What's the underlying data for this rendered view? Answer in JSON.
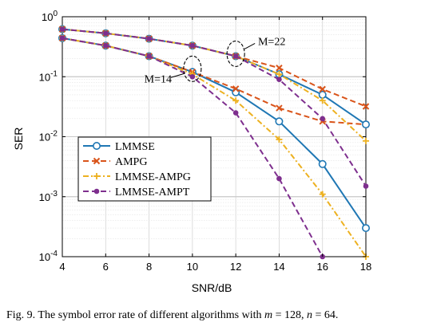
{
  "chart_data": {
    "type": "line",
    "title": "",
    "xlabel": "SNR/dB",
    "ylabel": "SER",
    "xlim": [
      4,
      18
    ],
    "ylim": [
      0.0001,
      1
    ],
    "yscale": "log",
    "grid": true,
    "legend_position": "bottom-left",
    "x_ticks": [
      4,
      6,
      8,
      10,
      12,
      14,
      16,
      18
    ],
    "y_ticks": [
      {
        "value": 0.0001,
        "mantissa": "10",
        "exp": "-4"
      },
      {
        "value": 0.001,
        "mantissa": "10",
        "exp": "-3"
      },
      {
        "value": 0.01,
        "mantissa": "10",
        "exp": "-2"
      },
      {
        "value": 0.1,
        "mantissa": "10",
        "exp": "-1"
      },
      {
        "value": 1,
        "mantissa": "10",
        "exp": "0"
      }
    ],
    "series": [
      {
        "name": "LMMSE",
        "group": "M=14",
        "color": "#1f77b4",
        "dash": "solid",
        "marker": "circle",
        "x": [
          4,
          6,
          8,
          10,
          12,
          14,
          16,
          18
        ],
        "y": [
          0.44,
          0.33,
          0.22,
          0.12,
          0.055,
          0.018,
          0.0035,
          0.0003
        ]
      },
      {
        "name": "AMPG",
        "group": "M=14",
        "color": "#d9541a",
        "dash": "dashed",
        "marker": "x",
        "x": [
          4,
          6,
          8,
          10,
          12,
          14,
          16,
          18
        ],
        "y": [
          0.44,
          0.33,
          0.22,
          0.12,
          0.063,
          0.03,
          0.018,
          0.016
        ]
      },
      {
        "name": "LMMSE-AMPG",
        "group": "M=14",
        "color": "#edb120",
        "dash": "dashdot",
        "marker": "plus",
        "x": [
          4,
          6,
          8,
          10,
          12,
          14,
          16,
          18
        ],
        "y": [
          0.44,
          0.33,
          0.22,
          0.11,
          0.04,
          0.009,
          0.0011,
          0.0001
        ]
      },
      {
        "name": "LMMSE-AMPT",
        "group": "M=14",
        "color": "#7e2f8e",
        "dash": "dashed",
        "marker": "dot",
        "x": [
          4,
          6,
          8,
          10,
          12,
          14,
          16
        ],
        "y": [
          0.44,
          0.33,
          0.22,
          0.1,
          0.025,
          0.002,
          0.0001
        ]
      },
      {
        "name": "LMMSE",
        "group": "M=22",
        "color": "#1f77b4",
        "dash": "solid",
        "marker": "circle",
        "x": [
          4,
          6,
          8,
          10,
          12,
          14,
          16,
          18
        ],
        "y": [
          0.62,
          0.53,
          0.43,
          0.33,
          0.22,
          0.11,
          0.05,
          0.016
        ]
      },
      {
        "name": "AMPG",
        "group": "M=22",
        "color": "#d9541a",
        "dash": "dashed",
        "marker": "x",
        "x": [
          4,
          6,
          8,
          10,
          12,
          14,
          16,
          18
        ],
        "y": [
          0.62,
          0.53,
          0.43,
          0.33,
          0.22,
          0.14,
          0.062,
          0.032
        ]
      },
      {
        "name": "LMMSE-AMPG",
        "group": "M=22",
        "color": "#edb120",
        "dash": "dashdot",
        "marker": "plus",
        "x": [
          4,
          6,
          8,
          10,
          12,
          14,
          16,
          18
        ],
        "y": [
          0.62,
          0.53,
          0.43,
          0.33,
          0.22,
          0.11,
          0.04,
          0.0085
        ]
      },
      {
        "name": "LMMSE-AMPT",
        "group": "M=22",
        "color": "#7e2f8e",
        "dash": "dashed",
        "marker": "dot",
        "x": [
          4,
          6,
          8,
          10,
          12,
          14,
          16,
          18
        ],
        "y": [
          0.62,
          0.53,
          0.43,
          0.33,
          0.22,
          0.09,
          0.02,
          0.0015
        ]
      }
    ],
    "legend": [
      "LMMSE",
      "AMPG",
      "LMMSE-AMPG",
      "LMMSE-AMPT"
    ],
    "annotations": [
      {
        "text": "M=14",
        "x": 10,
        "y": 0.12
      },
      {
        "text": "M=22",
        "x": 12,
        "y": 0.22
      }
    ]
  },
  "caption": {
    "lead": "Fig. 9.  The symbol error rate of different algorithms with ",
    "m_var": "m",
    "m_eq": " = 128, ",
    "n_var": "n",
    "n_eq": " = 64."
  }
}
